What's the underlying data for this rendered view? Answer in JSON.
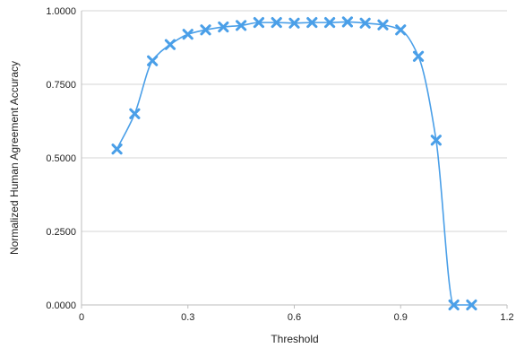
{
  "chart_data": {
    "type": "scatter",
    "title": "",
    "xlabel": "Threshold",
    "ylabel": "Normalized Human Agreement Accuracy",
    "xlim": [
      0,
      1.2
    ],
    "ylim": [
      0,
      1.0
    ],
    "x_ticks": [
      "0",
      "0.3",
      "0.6",
      "0.9",
      "1.2"
    ],
    "y_ticks": [
      "0.0000",
      "0.2500",
      "0.5000",
      "0.7500",
      "1.0000"
    ],
    "grid": "horizontal",
    "legend": "none",
    "marker": "x",
    "trendline": "smooth",
    "series": [
      {
        "color": "#4a9fe8",
        "x": [
          0.1,
          0.15,
          0.2,
          0.25,
          0.3,
          0.35,
          0.4,
          0.45,
          0.5,
          0.55,
          0.6,
          0.65,
          0.7,
          0.75,
          0.8,
          0.85,
          0.9,
          0.95,
          1.0,
          1.05,
          1.1
        ],
        "y": [
          0.53,
          0.65,
          0.83,
          0.885,
          0.92,
          0.935,
          0.945,
          0.95,
          0.96,
          0.96,
          0.958,
          0.96,
          0.96,
          0.962,
          0.958,
          0.952,
          0.935,
          0.845,
          0.56,
          0.0,
          0.0
        ]
      }
    ]
  }
}
